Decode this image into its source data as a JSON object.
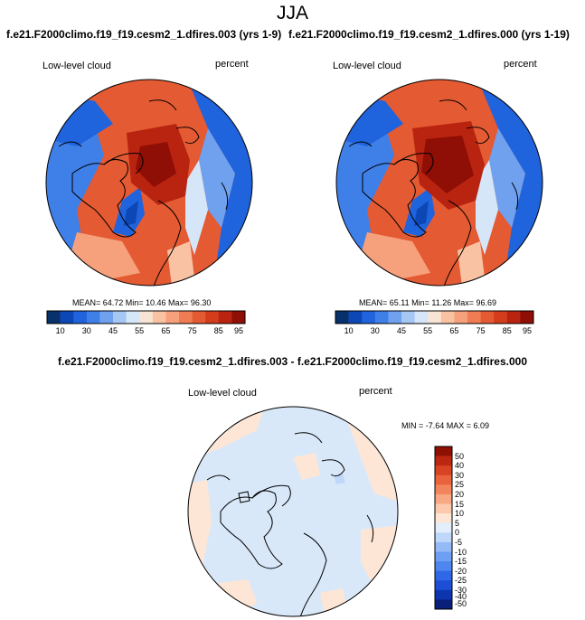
{
  "page": {
    "season_title": "JJA",
    "left_case_title": "f.e21.F2000climo.f19_f19.cesm2_1.dfires.003 (yrs 1-9)",
    "right_case_title": "f.e21.F2000climo.f19_f19.cesm2_1.dfires.000 (yrs 1-19)",
    "diff_case_title": "f.e21.F2000climo.f19_f19.cesm2_1.dfires.003 - f.e21.F2000climo.f19_f19.cesm2_1.dfires.000"
  },
  "panels": {
    "left": {
      "variable_label": "Low-level cloud",
      "units_label": "percent",
      "stats": "MEAN=  64.72   Min=  10.46   Max=  96.30",
      "colorbar_ticks": [
        "10",
        "30",
        "45",
        "55",
        "65",
        "75",
        "85",
        "95"
      ]
    },
    "right": {
      "variable_label": "Low-level cloud",
      "units_label": "percent",
      "stats": "MEAN=  65.11   Min=  11.26   Max=  96.69",
      "colorbar_ticks": [
        "10",
        "30",
        "45",
        "55",
        "65",
        "75",
        "85",
        "95"
      ]
    },
    "diff": {
      "variable_label": "Low-level cloud",
      "units_label": "percent",
      "stats": "MIN =  -7.64  MAX =   6.09",
      "colorbar_ticks": [
        "50",
        "40",
        "30",
        "25",
        "20",
        "15",
        "10",
        "5",
        "0",
        "-5",
        "-10",
        "-15",
        "-20",
        "-25",
        "-30",
        "-40",
        "-50"
      ]
    }
  },
  "colors": {
    "abs_scale": [
      "#08306b",
      "#0d47b5",
      "#1f63dd",
      "#3f7fe8",
      "#6fa1ef",
      "#a6c6f3",
      "#d6e6f9",
      "#f7e4d4",
      "#f9c2a3",
      "#f7a07c",
      "#f07c54",
      "#e45a33",
      "#d43c1c",
      "#b82410",
      "#8f0e05"
    ],
    "diff_scale": [
      "#0a1f7a",
      "#0d35b0",
      "#1c4fd6",
      "#2f68e6",
      "#4c86ee",
      "#6d9ff2",
      "#94bbf6",
      "#bfd7f9",
      "#e3eefc",
      "#fde6d6",
      "#fbc9ac",
      "#f8a882",
      "#f3855d",
      "#e9633d",
      "#d84324",
      "#bb2710",
      "#8f1004"
    ],
    "coastline": "#000000"
  }
}
